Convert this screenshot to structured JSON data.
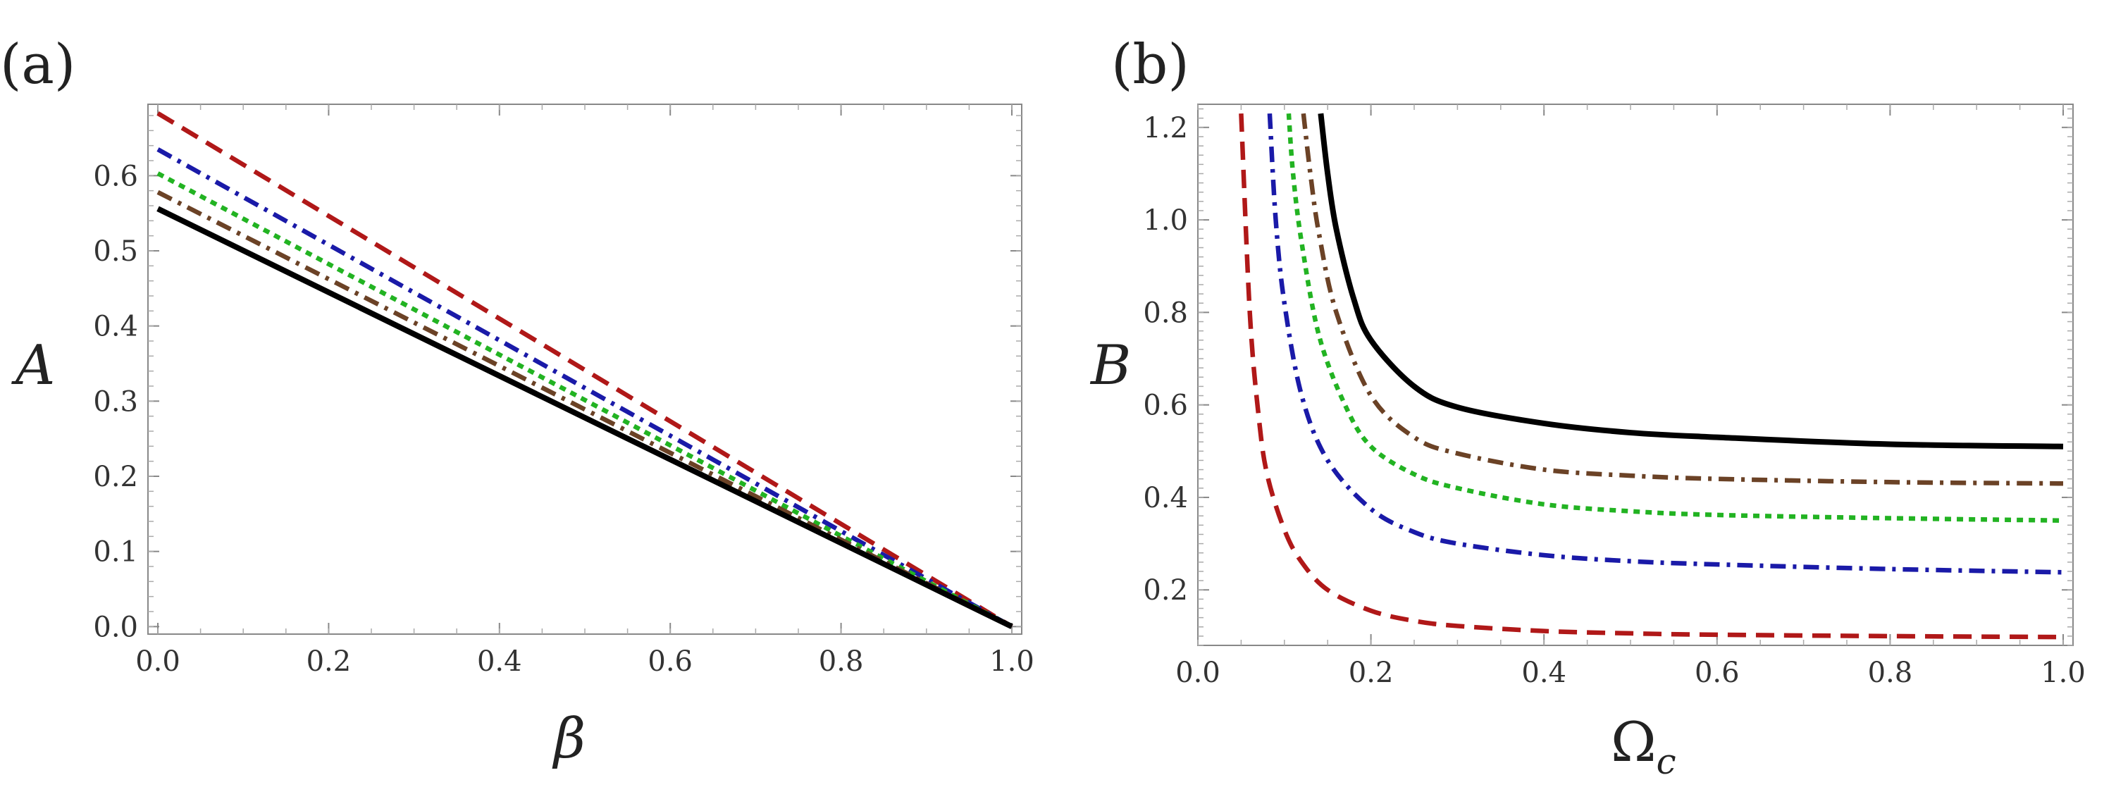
{
  "figure": {
    "panels": [
      "(a)",
      "(b)"
    ]
  },
  "chart_data": [
    {
      "type": "line",
      "panel_label": "(a)",
      "title": "",
      "xlabel": "β",
      "ylabel": "A",
      "xlim": [
        0.0,
        1.0
      ],
      "ylim": [
        -0.01,
        0.695
      ],
      "xticks": [
        "0.0",
        "0.2",
        "0.4",
        "0.6",
        "0.8",
        "1.0"
      ],
      "yticks": [
        "0.0",
        "0.1",
        "0.2",
        "0.3",
        "0.4",
        "0.5",
        "0.6"
      ],
      "grid": false,
      "series": [
        {
          "name": "dashed-red",
          "color": "#b01818",
          "dash": "dashed",
          "x": [
            0.0,
            1.0
          ],
          "y": [
            0.683,
            0.0
          ]
        },
        {
          "name": "dashdot-blue",
          "color": "#1a1aa8",
          "dash": "dashdot",
          "x": [
            0.0,
            1.0
          ],
          "y": [
            0.635,
            0.0
          ]
        },
        {
          "name": "dotted-green",
          "color": "#22b322",
          "dash": "dotted",
          "x": [
            0.0,
            1.0
          ],
          "y": [
            0.603,
            0.0
          ]
        },
        {
          "name": "dashdot-brown",
          "color": "#6b4226",
          "dash": "dashdot",
          "x": [
            0.0,
            1.0
          ],
          "y": [
            0.578,
            0.0
          ]
        },
        {
          "name": "solid-black",
          "color": "#000000",
          "dash": "solid",
          "x": [
            0.0,
            1.0
          ],
          "y": [
            0.556,
            0.0
          ]
        }
      ]
    },
    {
      "type": "line",
      "panel_label": "(b)",
      "title": "",
      "xlabel": "Ω",
      "xlabel_subscript": "c",
      "ylabel": "B",
      "xlim": [
        0.0,
        1.0
      ],
      "ylim": [
        0.08,
        1.25
      ],
      "xticks": [
        "0.0",
        "0.2",
        "0.4",
        "0.6",
        "0.8",
        "1.0"
      ],
      "yticks": [
        "0.2",
        "0.4",
        "0.6",
        "0.8",
        "1.0",
        "1.2"
      ],
      "grid": false,
      "series": [
        {
          "name": "dashed-red",
          "color": "#b01818",
          "dash": "dashed",
          "x": [
            0.05,
            0.06,
            0.07,
            0.08,
            0.1,
            0.12,
            0.15,
            0.2,
            0.25,
            0.3,
            0.4,
            0.5,
            0.6,
            0.8,
            1.0
          ],
          "y": [
            1.23,
            0.8,
            0.58,
            0.45,
            0.33,
            0.26,
            0.2,
            0.155,
            0.133,
            0.122,
            0.111,
            0.106,
            0.103,
            0.1,
            0.098
          ]
        },
        {
          "name": "dashdot-blue",
          "color": "#1a1aa8",
          "dash": "dashdot",
          "x": [
            0.083,
            0.09,
            0.1,
            0.12,
            0.15,
            0.2,
            0.25,
            0.3,
            0.4,
            0.5,
            0.6,
            0.8,
            1.0
          ],
          "y": [
            1.23,
            1.0,
            0.82,
            0.62,
            0.48,
            0.375,
            0.325,
            0.3,
            0.275,
            0.262,
            0.255,
            0.245,
            0.238
          ]
        },
        {
          "name": "dotted-green",
          "color": "#22b322",
          "dash": "dotted",
          "x": [
            0.105,
            0.11,
            0.12,
            0.14,
            0.17,
            0.2,
            0.25,
            0.3,
            0.4,
            0.5,
            0.6,
            0.8,
            1.0
          ],
          "y": [
            1.23,
            1.1,
            0.95,
            0.75,
            0.6,
            0.51,
            0.45,
            0.42,
            0.385,
            0.37,
            0.362,
            0.355,
            0.35
          ]
        },
        {
          "name": "dashdot-brown",
          "color": "#6b4226",
          "dash": "dashdot",
          "x": [
            0.122,
            0.13,
            0.14,
            0.16,
            0.2,
            0.25,
            0.3,
            0.4,
            0.5,
            0.6,
            0.8,
            1.0
          ],
          "y": [
            1.23,
            1.1,
            0.97,
            0.8,
            0.62,
            0.53,
            0.495,
            0.46,
            0.447,
            0.44,
            0.433,
            0.43
          ]
        },
        {
          "name": "solid-black",
          "color": "#000000",
          "dash": "solid",
          "x": [
            0.142,
            0.15,
            0.16,
            0.18,
            0.2,
            0.25,
            0.3,
            0.4,
            0.5,
            0.6,
            0.8,
            1.0
          ],
          "y": [
            1.23,
            1.1,
            0.98,
            0.83,
            0.74,
            0.64,
            0.595,
            0.56,
            0.54,
            0.53,
            0.515,
            0.51
          ]
        }
      ]
    }
  ]
}
